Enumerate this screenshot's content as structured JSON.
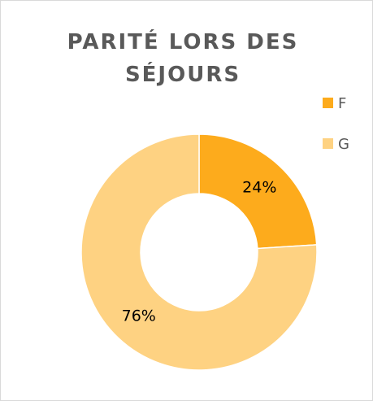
{
  "chart_data": {
    "type": "donut",
    "title": "PARITÉ LORS DES SÉJOURS",
    "categories": [
      "F",
      "G"
    ],
    "values": [
      24,
      76
    ],
    "value_labels": [
      "24%",
      "76%"
    ],
    "colors": [
      "#fdab1c",
      "#fed282"
    ],
    "legend": "right"
  }
}
